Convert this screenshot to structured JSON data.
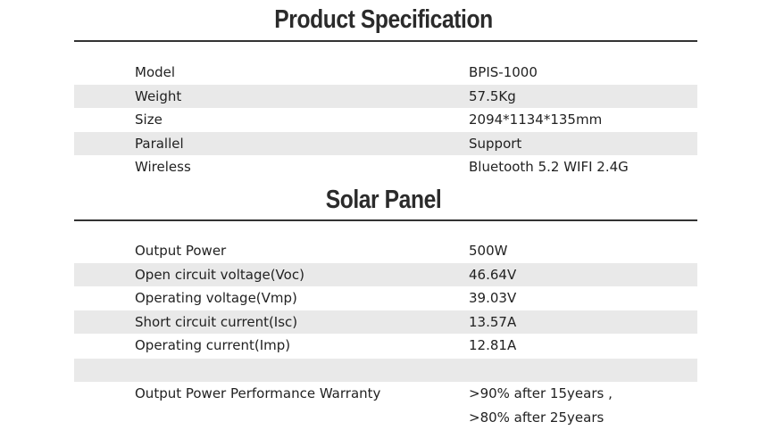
{
  "sections": [
    {
      "title": "Product Specification",
      "rows": [
        [
          "Model",
          "BPIS-1000"
        ],
        [
          "Weight",
          "57.5Kg"
        ],
        [
          "Size",
          "2094*1134*135mm"
        ],
        [
          "Parallel",
          "Support"
        ],
        [
          "Wireless",
          "Bluetooth 5.2 WIFI 2.4G"
        ]
      ]
    },
    {
      "title": "Solar Panel",
      "rows": [
        [
          "Output Power",
          "500W"
        ],
        [
          "Open circuit voltage(Voc)",
          "46.64V"
        ],
        [
          "Operating voltage(Vmp)",
          "39.03V"
        ],
        [
          "Short circuit current(Isc)",
          "13.57A"
        ],
        [
          "Operating current(Imp)",
          "12.81A"
        ],
        [
          "Output Power Performance Warranty",
          ">90% after 15years ,",
          ">80% after 25years"
        ]
      ]
    }
  ]
}
